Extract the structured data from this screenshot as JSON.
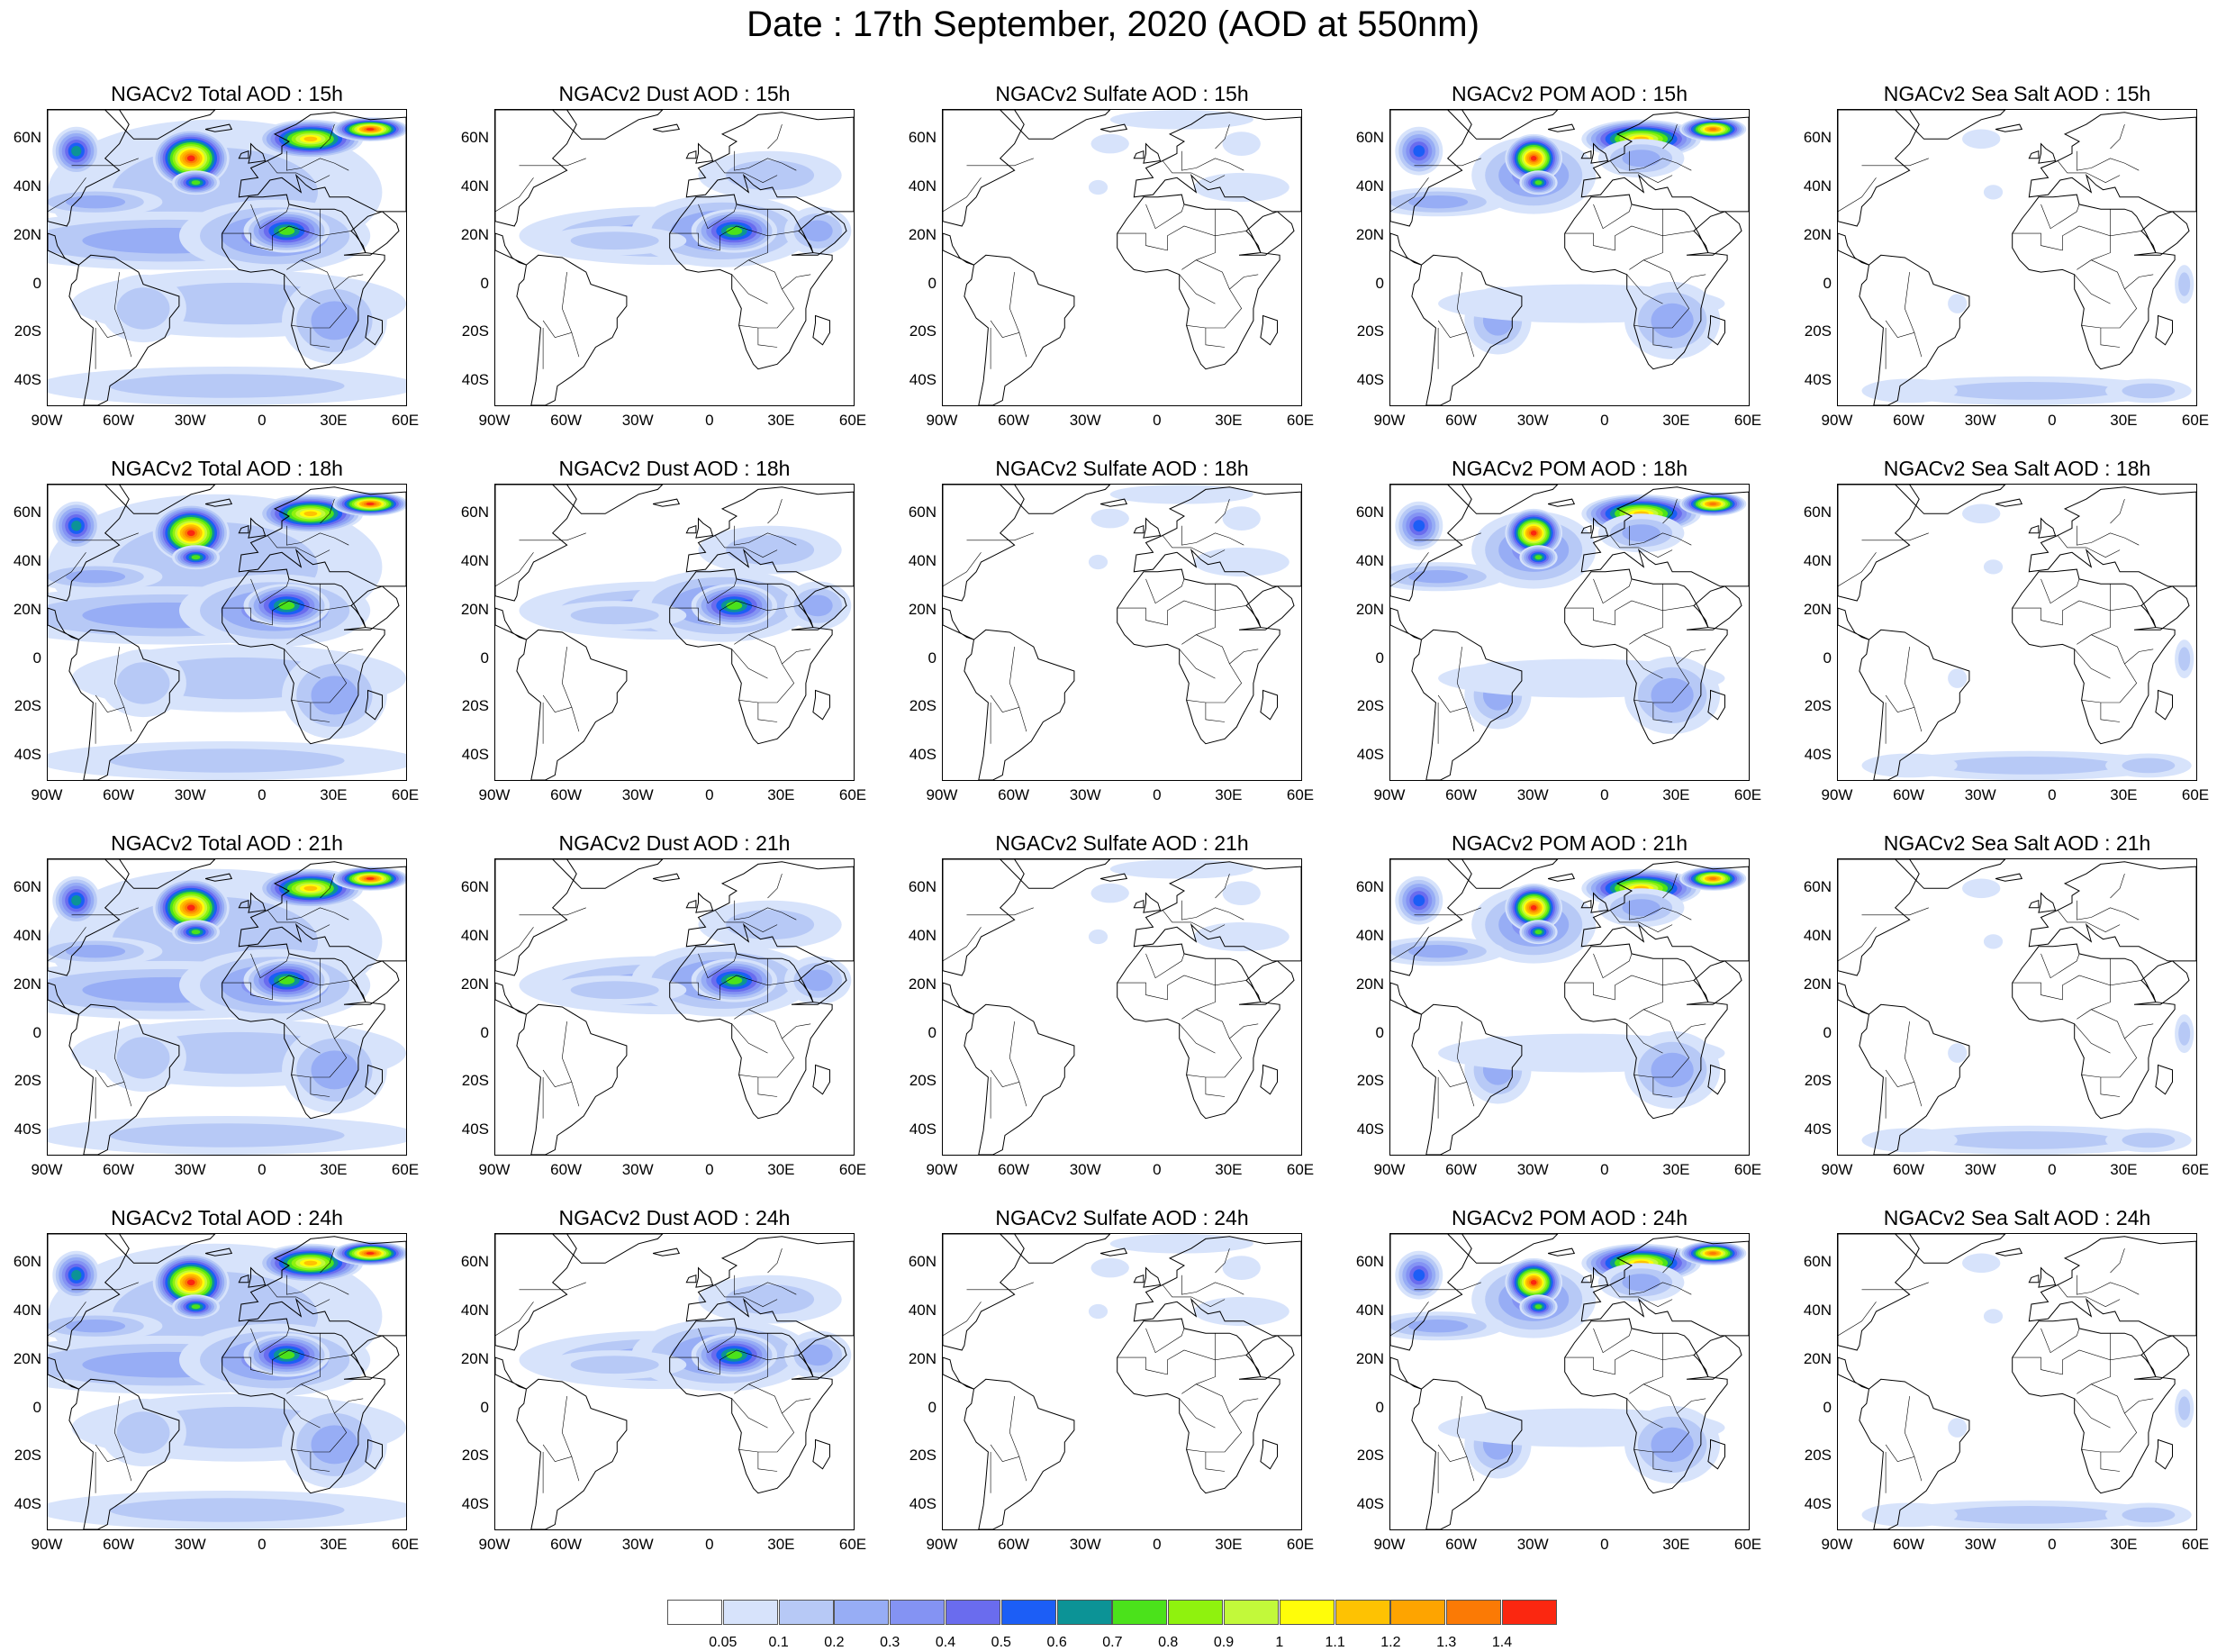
{
  "title": "Date : 17th September, 2020 (AOD at 550nm)",
  "lat_ticks": [
    "60N",
    "40N",
    "20N",
    "0",
    "20S",
    "40S"
  ],
  "lon_ticks": [
    "90W",
    "60W",
    "30W",
    "0",
    "30E",
    "60E"
  ],
  "map_extent": {
    "lon": [
      -90,
      60
    ],
    "lat": [
      -50,
      72
    ]
  },
  "colors": {
    "land_outline": "#000000",
    "colormap": [
      "#ffffff",
      "#d7e3fb",
      "#b7c9f6",
      "#97adf5",
      "#8493f3",
      "#6a6cee",
      "#1c5ef6",
      "#0c9396",
      "#4be21b",
      "#8ff20e",
      "#c2f93a",
      "#fffd09",
      "#fec202",
      "#fea400",
      "#fb7a05",
      "#fb2710"
    ]
  },
  "colorbar": {
    "levels": [
      "0.05",
      "0.1",
      "0.2",
      "0.3",
      "0.4",
      "0.5",
      "0.6",
      "0.7",
      "0.8",
      "0.9",
      "1",
      "1.1",
      "1.2",
      "1.3",
      "1.4"
    ]
  },
  "panels": [
    {
      "title": "NGACv2 Total AOD : 15h",
      "field": "total"
    },
    {
      "title": "NGACv2 Dust AOD : 15h",
      "field": "dust"
    },
    {
      "title": "NGACv2 Sulfate AOD : 15h",
      "field": "sulfate"
    },
    {
      "title": "NGACv2 POM AOD : 15h",
      "field": "pom"
    },
    {
      "title": "NGACv2 Sea Salt AOD : 15h",
      "field": "seasalt"
    },
    {
      "title": "NGACv2 Total AOD : 18h",
      "field": "total"
    },
    {
      "title": "NGACv2 Dust AOD : 18h",
      "field": "dust"
    },
    {
      "title": "NGACv2 Sulfate AOD : 18h",
      "field": "sulfate"
    },
    {
      "title": "NGACv2 POM AOD : 18h",
      "field": "pom"
    },
    {
      "title": "NGACv2 Sea Salt AOD : 18h",
      "field": "seasalt"
    },
    {
      "title": "NGACv2 Total AOD : 21h",
      "field": "total"
    },
    {
      "title": "NGACv2 Dust AOD : 21h",
      "field": "dust"
    },
    {
      "title": "NGACv2 Sulfate AOD : 21h",
      "field": "sulfate"
    },
    {
      "title": "NGACv2 POM AOD : 21h",
      "field": "pom"
    },
    {
      "title": "NGACv2 Sea Salt AOD : 21h",
      "field": "seasalt"
    },
    {
      "title": "NGACv2 Total AOD : 24h",
      "field": "total"
    },
    {
      "title": "NGACv2 Dust AOD : 24h",
      "field": "dust"
    },
    {
      "title": "NGACv2 Sulfate AOD : 24h",
      "field": "sulfate"
    },
    {
      "title": "NGACv2 POM AOD : 24h",
      "field": "pom"
    },
    {
      "title": "NGACv2 Sea Salt  AOD : 24h",
      "field": "seasalt"
    }
  ]
}
